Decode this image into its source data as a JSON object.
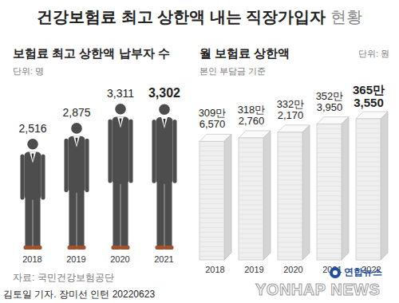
{
  "title": "건강보험료 최고 상한액 내는 직장가입자",
  "title_suffix": "현황",
  "source": "자료: 국민건강보험공단",
  "credit": "김토일 기자. 장미선 인턴 20220623",
  "logo": {
    "korean": "연합뉴스",
    "english": "YONHAP NEWS"
  },
  "chart_data": [
    {
      "type": "bar",
      "title": "보험료 최고 상한액 납부자 수",
      "annotations": [
        "단위: 명"
      ],
      "categories": [
        "2018",
        "2019",
        "2020",
        "2021"
      ],
      "values": [
        2516,
        2875,
        3311,
        3302
      ],
      "value_labels": [
        "2,516",
        "2,875",
        "3,311",
        "3,302"
      ],
      "data_labels": true,
      "tick_labels": "x",
      "color": "#4d4d4d"
    },
    {
      "type": "bar",
      "title": "월 보험료 상한액",
      "subtitle": "본인 부담금 기준",
      "annotations": [
        "단위: 원"
      ],
      "categories": [
        "2018",
        "2019",
        "2020",
        "2021",
        "2022"
      ],
      "values": [
        3096570,
        3182760,
        3322170,
        3523950,
        3653550
      ],
      "value_labels": [
        "309만\n6,570",
        "318만\n2,760",
        "332만\n2,170",
        "352만\n3,950",
        "365만\n3,550"
      ],
      "data_labels": true,
      "tick_labels": "x",
      "color": "#efefef"
    }
  ]
}
